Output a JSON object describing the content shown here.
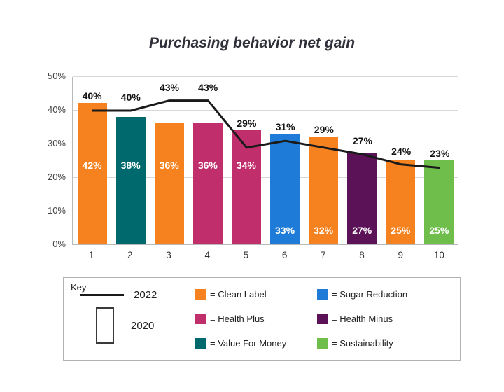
{
  "title": "Purchasing behavior net gain",
  "chart_data": {
    "type": "bar",
    "title": "Purchasing behavior net gain",
    "categories": [
      "1",
      "2",
      "3",
      "4",
      "5",
      "6",
      "7",
      "8",
      "9",
      "10"
    ],
    "series": [
      {
        "name": "2020",
        "type": "bar",
        "values": [
          42,
          38,
          36,
          36,
          34,
          33,
          32,
          27,
          25,
          25
        ],
        "colors": [
          "#F5821F",
          "#00696E",
          "#F5821F",
          "#C02E6B",
          "#C02E6B",
          "#1E7CD8",
          "#F5821F",
          "#5B1256",
          "#F5821F",
          "#6FBE4B"
        ]
      },
      {
        "name": "2022",
        "type": "line",
        "color": "#1A1A1A",
        "values": [
          40,
          40,
          43,
          43,
          29,
          31,
          29,
          27,
          24,
          23
        ]
      }
    ],
    "xlabel": "",
    "ylabel": "",
    "ylim": [
      0,
      50
    ],
    "yticks": [
      0,
      10,
      20,
      30,
      40,
      50
    ],
    "ytick_labels": [
      "0%",
      "10%",
      "20%",
      "30%",
      "40%",
      "50%"
    ],
    "grid": true,
    "legend_position": "bottom"
  },
  "legend": {
    "title": "Key",
    "series": [
      {
        "label": "2022",
        "swatch": "line"
      },
      {
        "label": "2020",
        "swatch": "bar-outline"
      }
    ],
    "items": [
      {
        "label": "= Clean Label",
        "color": "#F5821F"
      },
      {
        "label": "= Sugar Reduction",
        "color": "#1E7CD8"
      },
      {
        "label": "= Health Plus",
        "color": "#C02E6B"
      },
      {
        "label": "= Health Minus",
        "color": "#5B1256"
      },
      {
        "label": "= Value For Money",
        "color": "#00696E"
      },
      {
        "label": "= Sustainability",
        "color": "#6FBE4B"
      }
    ]
  }
}
